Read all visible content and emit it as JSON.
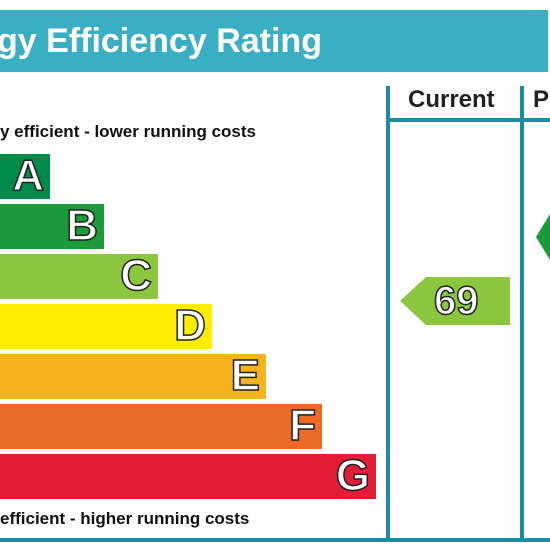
{
  "header": {
    "title": "gy Efficiency Rating"
  },
  "columns": {
    "current_label": "Current",
    "potential_label": "P"
  },
  "captions": {
    "top": "y efficient - lower running costs",
    "bottom": "efficient - higher running costs"
  },
  "chart_data": {
    "type": "bar",
    "categories": [
      "A",
      "B",
      "C",
      "D",
      "E",
      "F",
      "G"
    ],
    "colors": [
      "#008a4a",
      "#1b9b3a",
      "#8cc63f",
      "#ffed00",
      "#f5b21b",
      "#ec6b24",
      "#e31d38"
    ],
    "current": {
      "value": "69",
      "band": "C",
      "color": "#8cc63f"
    },
    "potential": {
      "value": "",
      "band": "B",
      "color": "#1b9b3a"
    }
  }
}
